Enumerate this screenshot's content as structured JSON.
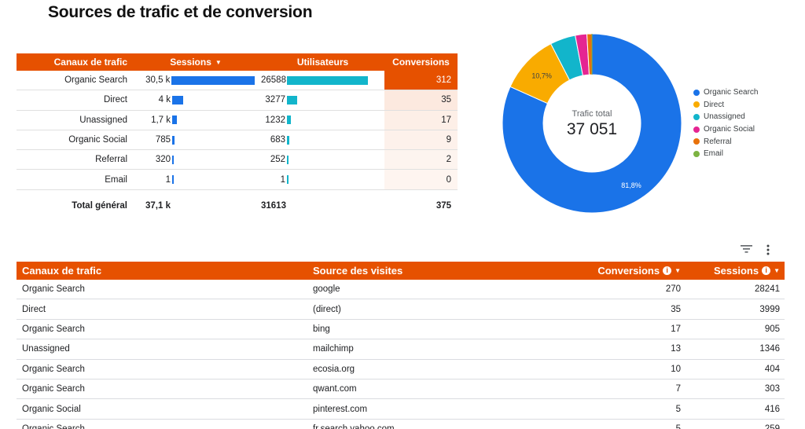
{
  "title": "Sources de trafic et de conversion",
  "summary_table": {
    "headers": {
      "channel": "Canaux de trafic",
      "sessions": "Sessions",
      "users": "Utilisateurs",
      "conversions": "Conversions"
    },
    "rows": [
      {
        "channel": "Organic Search",
        "sessions": "30,5 k",
        "sessions_value": 30500,
        "users": "26588",
        "users_value": 26588,
        "conversions": "312",
        "conversions_value": 312
      },
      {
        "channel": "Direct",
        "sessions": "4 k",
        "sessions_value": 4000,
        "users": "3277",
        "users_value": 3277,
        "conversions": "35",
        "conversions_value": 35
      },
      {
        "channel": "Unassigned",
        "sessions": "1,7 k",
        "sessions_value": 1700,
        "users": "1232",
        "users_value": 1232,
        "conversions": "17",
        "conversions_value": 17
      },
      {
        "channel": "Organic Social",
        "sessions": "785",
        "sessions_value": 785,
        "users": "683",
        "users_value": 683,
        "conversions": "9",
        "conversions_value": 9
      },
      {
        "channel": "Referral",
        "sessions": "320",
        "sessions_value": 320,
        "users": "252",
        "users_value": 252,
        "conversions": "2",
        "conversions_value": 2
      },
      {
        "channel": "Email",
        "sessions": "1",
        "sessions_value": 1,
        "users": "1",
        "users_value": 1,
        "conversions": "0",
        "conversions_value": 0
      }
    ],
    "total": {
      "label": "Total général",
      "sessions": "37,1 k",
      "users": "31613",
      "conversions": "375"
    },
    "colors": {
      "header": "#e65100",
      "sessions_bar": "#1a73e8",
      "users_bar": "#12b5cb",
      "conversion_heat": "#e65100"
    }
  },
  "chart_data": {
    "type": "pie",
    "center_label": "Trafic total",
    "center_value": "37 051",
    "slices": [
      {
        "name": "Organic Search",
        "value": 81.8,
        "label": "81,8%",
        "color": "#1a73e8"
      },
      {
        "name": "Direct",
        "value": 10.7,
        "label": "10,7%",
        "color": "#f9ab00"
      },
      {
        "name": "Unassigned",
        "value": 4.6,
        "label": "",
        "color": "#12b5cb"
      },
      {
        "name": "Organic Social",
        "value": 2.1,
        "label": "",
        "color": "#e52592"
      },
      {
        "name": "Referral",
        "value": 0.9,
        "label": "",
        "color": "#e8710a"
      },
      {
        "name": "Email",
        "value": 0.0,
        "label": "",
        "color": "#7cb342"
      }
    ],
    "legend_position": "right"
  },
  "detail_table": {
    "headers": {
      "channel": "Canaux de trafic",
      "source": "Source des visites",
      "conversions": "Conversions",
      "sessions": "Sessions"
    },
    "rows": [
      {
        "channel": "Organic Search",
        "source": "google",
        "conversions": "270",
        "sessions": "28241"
      },
      {
        "channel": "Direct",
        "source": "(direct)",
        "conversions": "35",
        "sessions": "3999"
      },
      {
        "channel": "Organic Search",
        "source": "bing",
        "conversions": "17",
        "sessions": "905"
      },
      {
        "channel": "Unassigned",
        "source": "mailchimp",
        "conversions": "13",
        "sessions": "1346"
      },
      {
        "channel": "Organic Search",
        "source": "ecosia.org",
        "conversions": "10",
        "sessions": "404"
      },
      {
        "channel": "Organic Search",
        "source": "qwant.com",
        "conversions": "7",
        "sessions": "303"
      },
      {
        "channel": "Organic Social",
        "source": "pinterest.com",
        "conversions": "5",
        "sessions": "416"
      },
      {
        "channel": "Organic Search",
        "source": "fr.search.yahoo.com",
        "conversions": "5",
        "sessions": "259"
      }
    ],
    "icons": {
      "filter": "filter-icon",
      "more": "more-vert-icon",
      "info": "info-icon",
      "sort": "sort-down-icon"
    }
  }
}
